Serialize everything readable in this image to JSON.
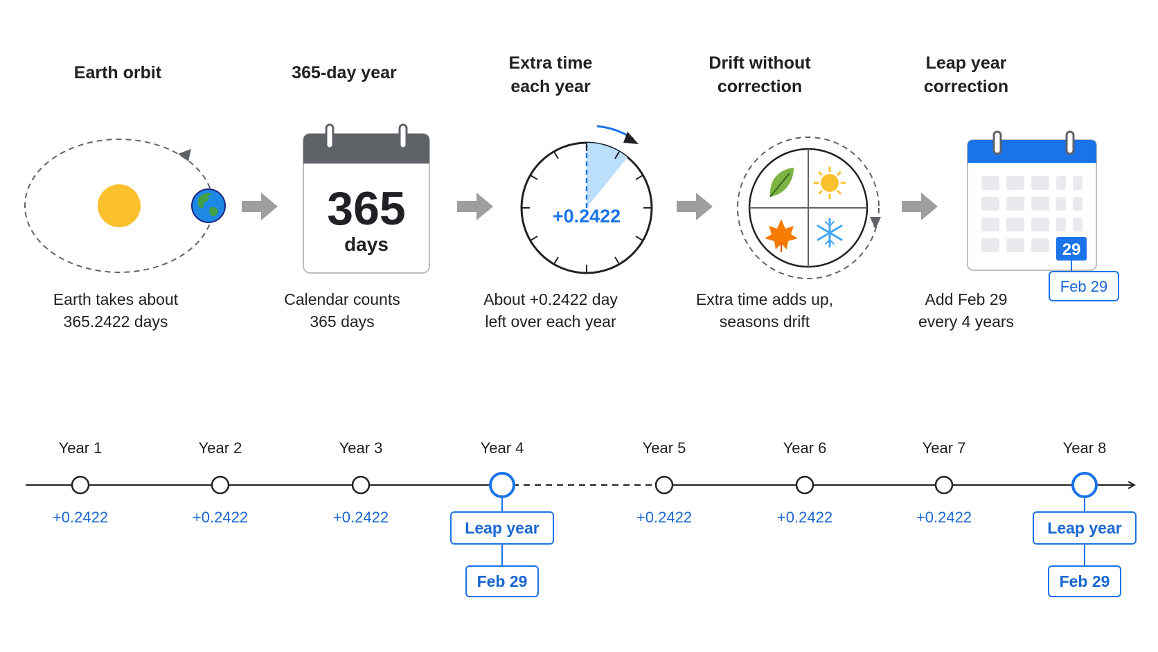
{
  "colors": {
    "text": "#202124",
    "accent_blue": "#1a73e8",
    "link_blue": "#1967d2",
    "arrow_gray": "#9e9e9e",
    "sun": "#fbc02d",
    "calendar_header": "#5f6368"
  },
  "steps": [
    {
      "title": [
        "Earth orbit"
      ],
      "caption": [
        "Earth takes about",
        "365.2422 days"
      ],
      "icon": "earth-orbit-icon"
    },
    {
      "title": [
        "365-day year"
      ],
      "caption": [
        "Calendar counts",
        "365 days"
      ],
      "icon": "calendar-icon",
      "big_number": "365",
      "unit": "days"
    },
    {
      "title": [
        "Extra time",
        "each year"
      ],
      "caption": [
        "About +0.2422 day",
        "left over each year"
      ],
      "icon": "clock-icon",
      "value": "+0.2422"
    },
    {
      "title": [
        "Drift without",
        "correction"
      ],
      "caption": [
        "Extra time adds up,",
        "seasons drift"
      ],
      "icon": "seasons-icon"
    },
    {
      "title": [
        "Leap year",
        "correction"
      ],
      "caption": [
        "Add Feb 29",
        "every 4 years"
      ],
      "icon": "leap-calendar-icon",
      "day_badge": "29",
      "tag": "Feb 29"
    }
  ],
  "timeline": {
    "years": [
      {
        "label": "Year 1",
        "value": "+0.2422",
        "leap": false
      },
      {
        "label": "Year 2",
        "value": "+0.2422",
        "leap": false
      },
      {
        "label": "Year 3",
        "value": "+0.2422",
        "leap": false
      },
      {
        "label": "Year 4",
        "value": "",
        "leap": true,
        "leap_label": "Leap year",
        "date_label": "Feb 29"
      },
      {
        "label": "Year 5",
        "value": "+0.2422",
        "leap": false
      },
      {
        "label": "Year 6",
        "value": "+0.2422",
        "leap": false
      },
      {
        "label": "Year 7",
        "value": "+0.2422",
        "leap": false
      },
      {
        "label": "Year 8",
        "value": "",
        "leap": true,
        "leap_label": "Leap year",
        "date_label": "Feb 29"
      }
    ]
  }
}
